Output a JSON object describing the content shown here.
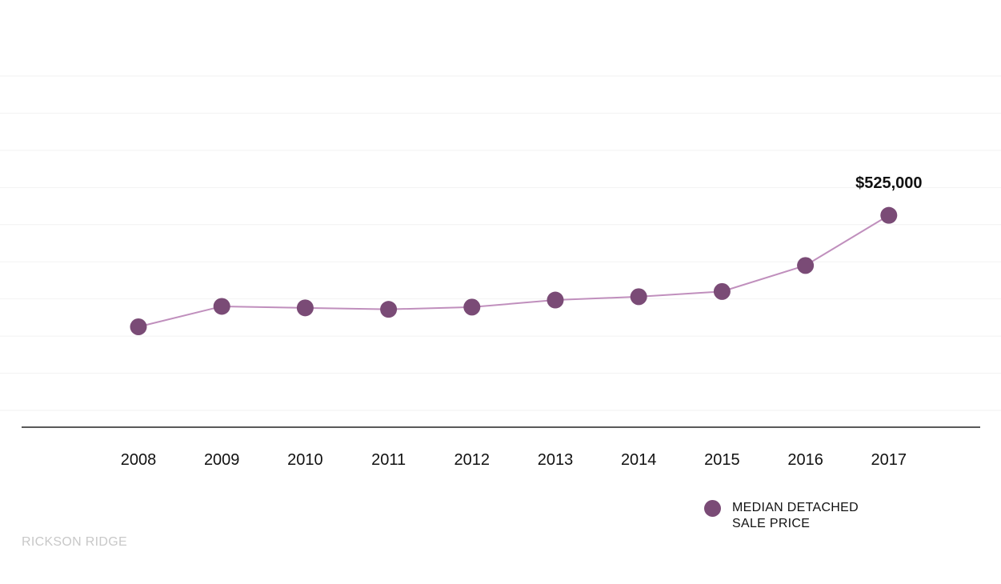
{
  "chart_data": {
    "type": "line",
    "categories": [
      "2008",
      "2009",
      "2010",
      "2011",
      "2012",
      "2013",
      "2014",
      "2015",
      "2016",
      "2017"
    ],
    "series": [
      {
        "name": "MEDIAN DETACHED SALE PRICE",
        "values": [
          225000,
          280000,
          276000,
          272000,
          278000,
          297000,
          306000,
          320000,
          390000,
          525000
        ],
        "color": "#7a4b76",
        "line_color": "#c08fbd"
      }
    ],
    "annotations": [
      {
        "category": "2017",
        "text": "$525,000"
      }
    ],
    "ylim": [
      0,
      900000
    ],
    "grid": true,
    "legend": "bottom-right"
  },
  "footer": {
    "brand": "RICKSON RIDGE"
  },
  "colors": {
    "axis": "#222222",
    "grid": "#f2f2f2",
    "watermark": "#c8c8c8"
  }
}
